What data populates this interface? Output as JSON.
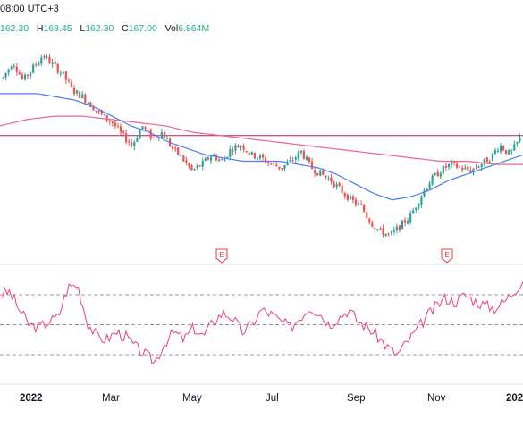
{
  "header": {
    "time_text": "08:00 UTC+3",
    "ohlc": [
      {
        "key": "",
        "value": "162.30"
      },
      {
        "key": "H",
        "value": "168.45"
      },
      {
        "key": "L",
        "value": "162.30"
      },
      {
        "key": "C",
        "value": "167.00"
      },
      {
        "key": "Vol",
        "value": "6.864M"
      }
    ]
  },
  "colors": {
    "candle_up": "#26a69a",
    "candle_down": "#ef5350",
    "ma_short": "#4a7ff0",
    "ma_long": "#f06292",
    "hline": "#c2185b",
    "rsi": "#ec407a",
    "earnings_badge": "#f23645"
  },
  "x_axis": {
    "labels": [
      {
        "text": "2022",
        "bold": true
      },
      {
        "text": "Mar",
        "bold": false
      },
      {
        "text": "May",
        "bold": false
      },
      {
        "text": "Jul",
        "bold": false
      },
      {
        "text": "Sep",
        "bold": false
      },
      {
        "text": "Nov",
        "bold": false
      },
      {
        "text": "202",
        "bold": true
      }
    ]
  },
  "earnings_markers": [
    {
      "label": "E"
    },
    {
      "label": "E"
    }
  ],
  "chart_data": {
    "type": "candlestick",
    "price_path": [
      175,
      180,
      174,
      178,
      182,
      179,
      176,
      171,
      169,
      166,
      163,
      161,
      157,
      154,
      160,
      156,
      158,
      153,
      150,
      146,
      148,
      151,
      149,
      153,
      154,
      151,
      150,
      148,
      147,
      149,
      152,
      147,
      145,
      143,
      140,
      137,
      135,
      130,
      127,
      126,
      129,
      132,
      138,
      143,
      146,
      148,
      147,
      146,
      148,
      150,
      154,
      151,
      156
    ],
    "ma_short": [
      170,
      170,
      170,
      169,
      168,
      166,
      163,
      160,
      158,
      155,
      153,
      151,
      150,
      149,
      149,
      149,
      148,
      147,
      145,
      142,
      139,
      137,
      138,
      140,
      143,
      145,
      147,
      149,
      151
    ],
    "ma_long": [
      160,
      162,
      163,
      163,
      162,
      161,
      160,
      158,
      157,
      156,
      155,
      154,
      153,
      152,
      151,
      150,
      149,
      149,
      148,
      148
    ],
    "horizontal_level": 157,
    "rsi": [
      70,
      72,
      60,
      50,
      48,
      52,
      55,
      75,
      77,
      52,
      42,
      40,
      45,
      42,
      35,
      30,
      25,
      38,
      45,
      40,
      48,
      42,
      52,
      58,
      55,
      45,
      50,
      60,
      57,
      52,
      48,
      55,
      62,
      58,
      50,
      55,
      60,
      52,
      48,
      42,
      35,
      30,
      38,
      46,
      55,
      62,
      68,
      65,
      70,
      66,
      63,
      61,
      65,
      72,
      80
    ],
    "rsi_levels": [
      70,
      50,
      30
    ],
    "grid": false
  }
}
